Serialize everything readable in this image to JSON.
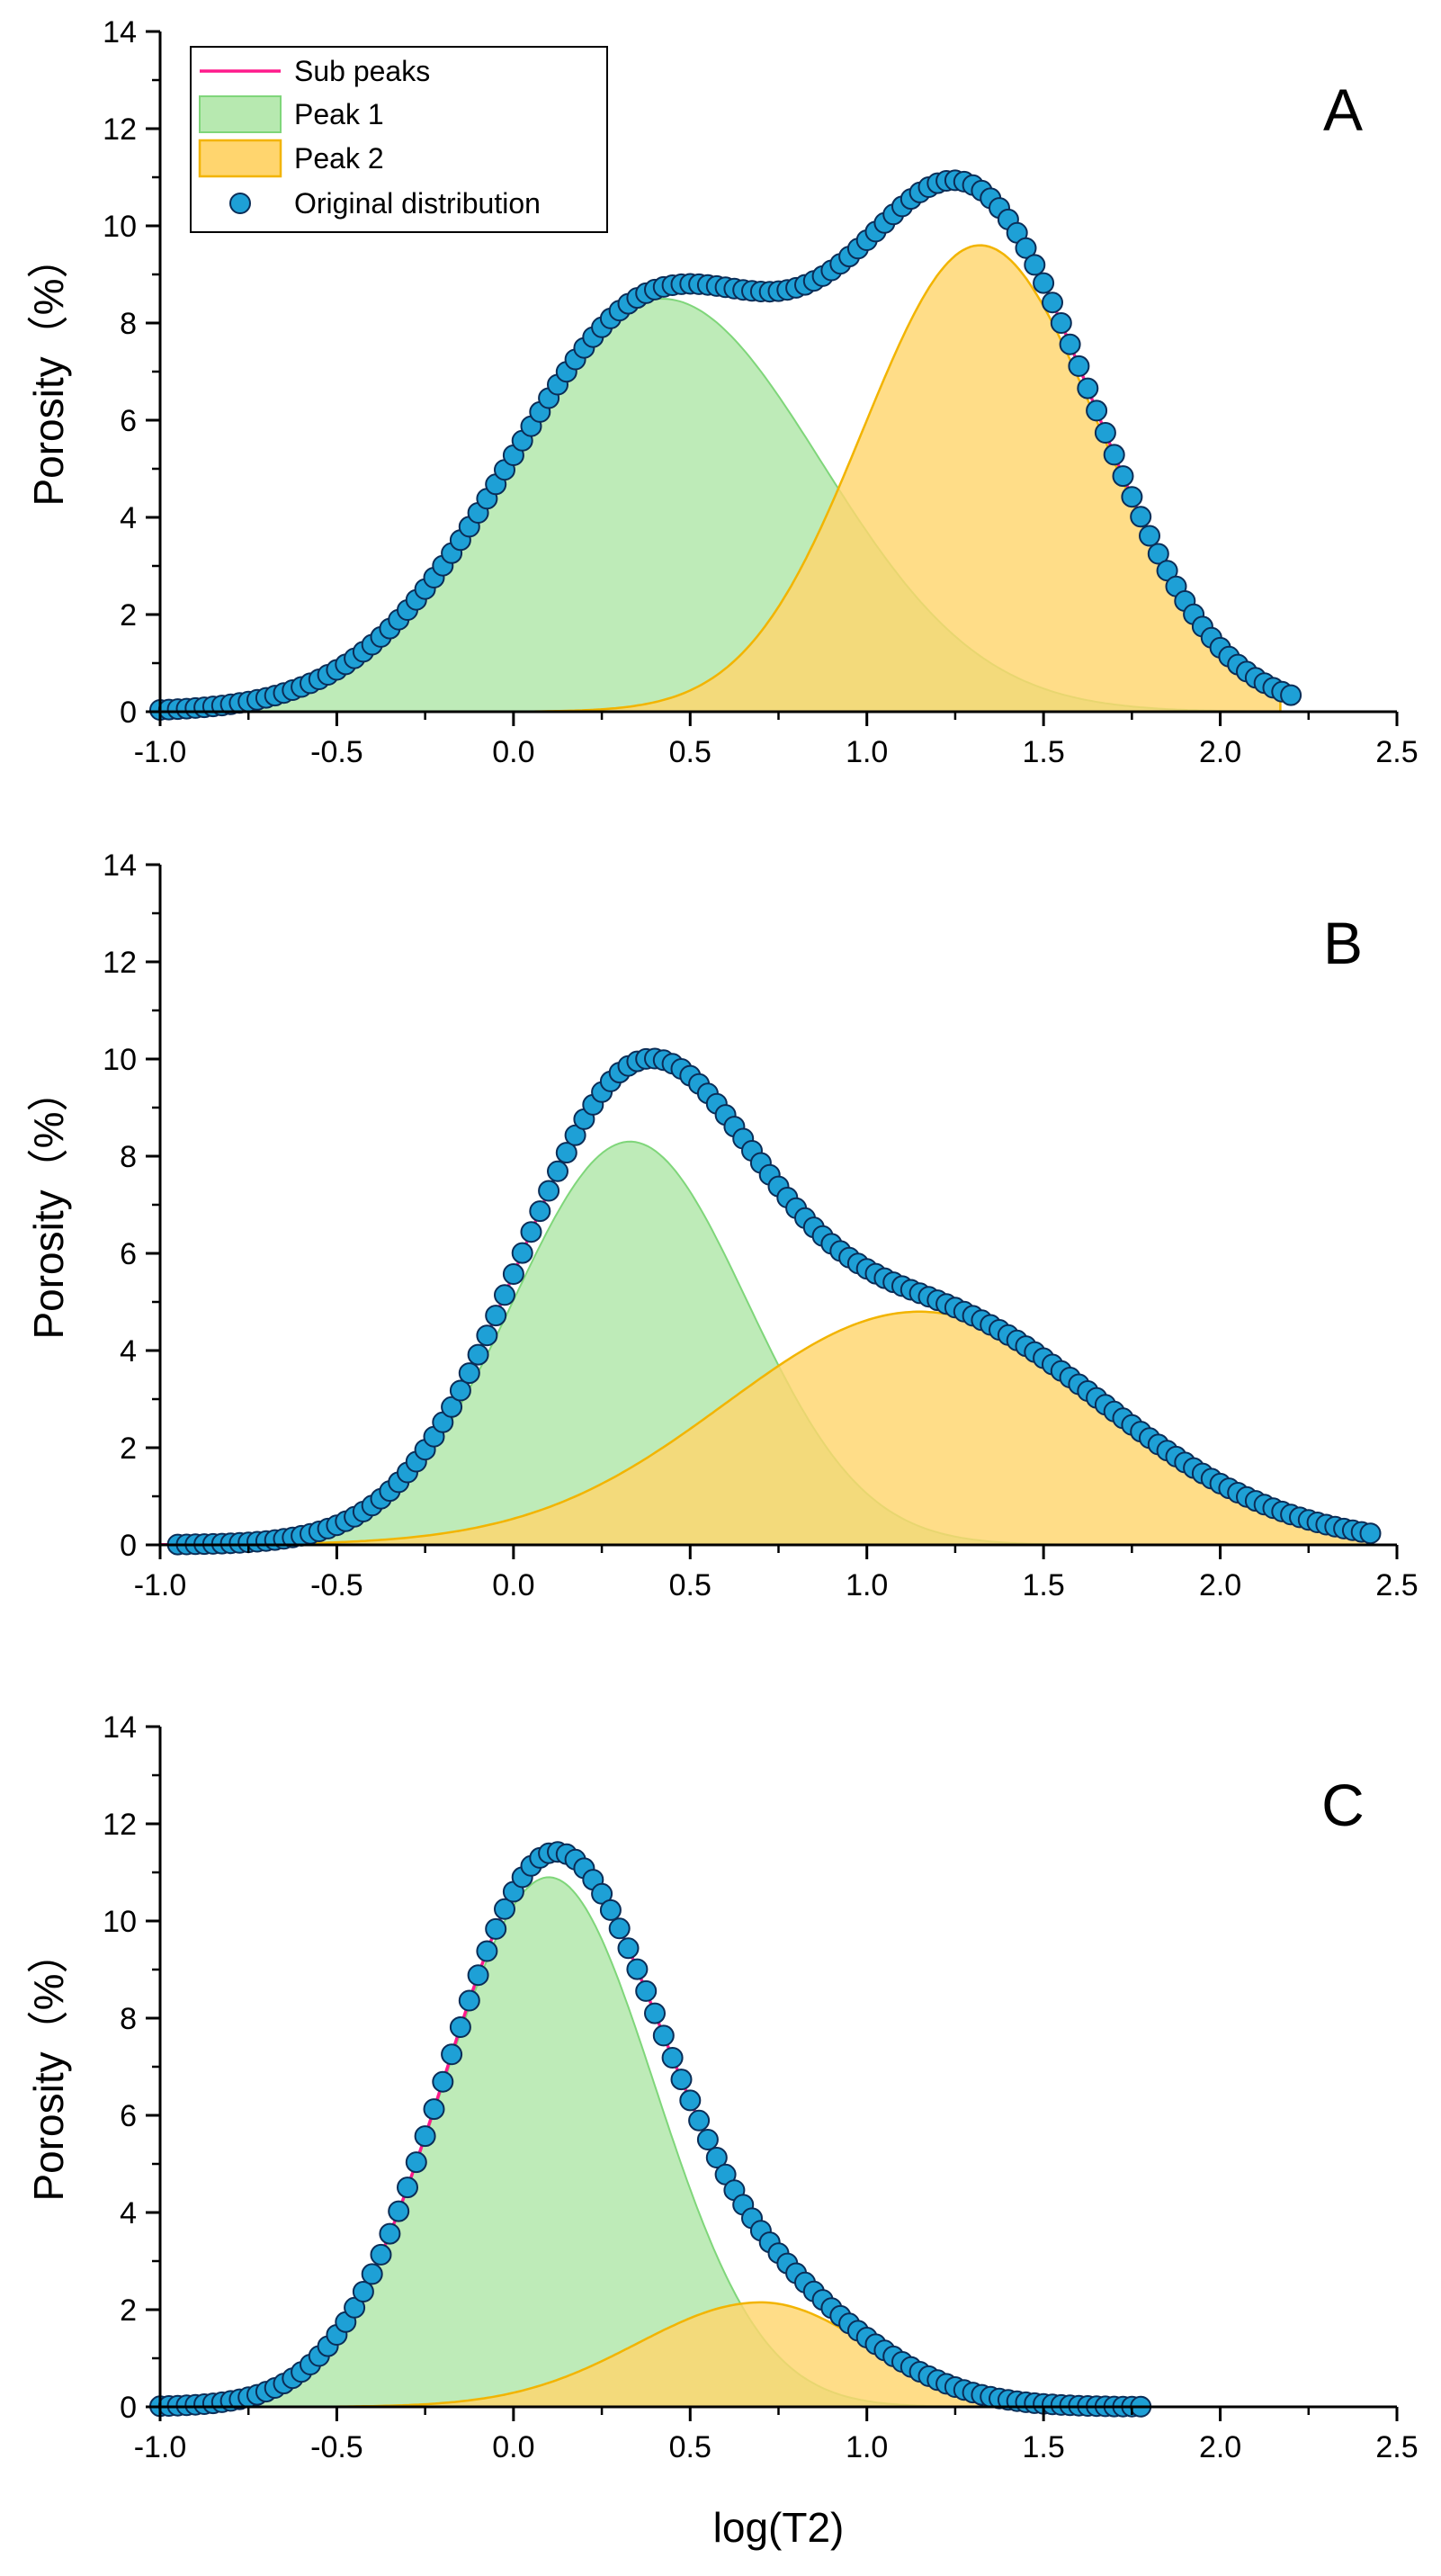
{
  "colors": {
    "sub_peaks": "#ff1a8c",
    "peak1_fill": "#b7e9b0",
    "peak1_stroke": "#7fd67a",
    "peak2_fill": "#ffd56e",
    "peak2_stroke": "#f2b400",
    "original_fill": "#1ea0d6",
    "original_stroke": "#0b2d57"
  },
  "chart_data": [
    {
      "type": "area",
      "panel_label": "A",
      "xlabel": "",
      "ylabel": "Porosity（%）",
      "xlim": [
        -1.0,
        2.5
      ],
      "ylim": [
        0,
        14
      ],
      "x_ticks": [
        "-1.0",
        "-0.5",
        "0.0",
        "0.5",
        "1.0",
        "1.5",
        "2.0",
        "2.5"
      ],
      "y_ticks": [
        "0",
        "2",
        "4",
        "6",
        "8",
        "10",
        "12",
        "14"
      ],
      "legend": {
        "placement": "top-left",
        "entries": [
          "Sub peaks",
          "Peak 1",
          "Peak 2",
          "Original distribution"
        ]
      },
      "series": [
        {
          "name": "Peak 1",
          "kind": "area",
          "peak": 8.5,
          "center": 0.42,
          "sigma_left": 0.43,
          "sigma_right": 0.45,
          "x_range": [
            -1.0,
            2.15
          ]
        },
        {
          "name": "Peak 2",
          "kind": "area",
          "peak": 9.6,
          "center": 1.32,
          "sigma_left": 0.33,
          "sigma_right": 0.34,
          "x_range": [
            -1.0,
            2.17
          ]
        },
        {
          "name": "Sub peaks",
          "kind": "line",
          "x_range": [
            -1.0,
            2.17
          ]
        },
        {
          "name": "Original distribution",
          "kind": "scatter",
          "step": 0.025,
          "x_range": [
            -1.0,
            2.2
          ]
        }
      ]
    },
    {
      "type": "area",
      "panel_label": "B",
      "xlabel": "",
      "ylabel": "Porosity（%）",
      "xlim": [
        -1.0,
        2.5
      ],
      "ylim": [
        0,
        14
      ],
      "x_ticks": [
        "-1.0",
        "-0.5",
        "0.0",
        "0.5",
        "1.0",
        "1.5",
        "2.0",
        "2.5"
      ],
      "y_ticks": [
        "0",
        "2",
        "4",
        "6",
        "8",
        "10",
        "12",
        "14"
      ],
      "series": [
        {
          "name": "Peak 1",
          "kind": "area",
          "peak": 8.3,
          "center": 0.33,
          "sigma_left": 0.33,
          "sigma_right": 0.33,
          "x_range": [
            -1.0,
            2.42
          ]
        },
        {
          "name": "Peak 2",
          "kind": "area",
          "peak": 4.8,
          "center": 1.15,
          "sigma_left": 0.55,
          "sigma_right": 0.52,
          "x_range": [
            -1.0,
            2.42
          ]
        },
        {
          "name": "Sub peaks",
          "kind": "line",
          "x_range": [
            -1.0,
            2.42
          ]
        },
        {
          "name": "Original distribution",
          "kind": "scatter",
          "step": 0.025,
          "x_range": [
            -0.95,
            2.42
          ]
        }
      ]
    },
    {
      "type": "area",
      "panel_label": "C",
      "xlabel": "log(T2)",
      "ylabel": "Porosity（%）",
      "xlim": [
        -1.0,
        2.5
      ],
      "ylim": [
        0,
        14
      ],
      "x_ticks": [
        "-1.0",
        "-0.5",
        "0.0",
        "0.5",
        "1.0",
        "1.5",
        "2.0",
        "2.5"
      ],
      "y_ticks": [
        "0",
        "2",
        "4",
        "6",
        "8",
        "10",
        "12",
        "14"
      ],
      "series": [
        {
          "name": "Peak 1",
          "kind": "area",
          "peak": 10.9,
          "center": 0.1,
          "sigma_left": 0.3,
          "sigma_right": 0.3,
          "x_range": [
            -1.0,
            1.78
          ]
        },
        {
          "name": "Peak 2",
          "kind": "area",
          "peak": 2.15,
          "center": 0.7,
          "sigma_left": 0.35,
          "sigma_right": 0.3,
          "x_range": [
            -1.0,
            1.78
          ]
        },
        {
          "name": "Sub peaks",
          "kind": "line",
          "x_range": [
            -1.0,
            1.78
          ]
        },
        {
          "name": "Original distribution",
          "kind": "scatter",
          "step": 0.025,
          "x_range": [
            -1.0,
            1.78
          ]
        }
      ]
    }
  ]
}
